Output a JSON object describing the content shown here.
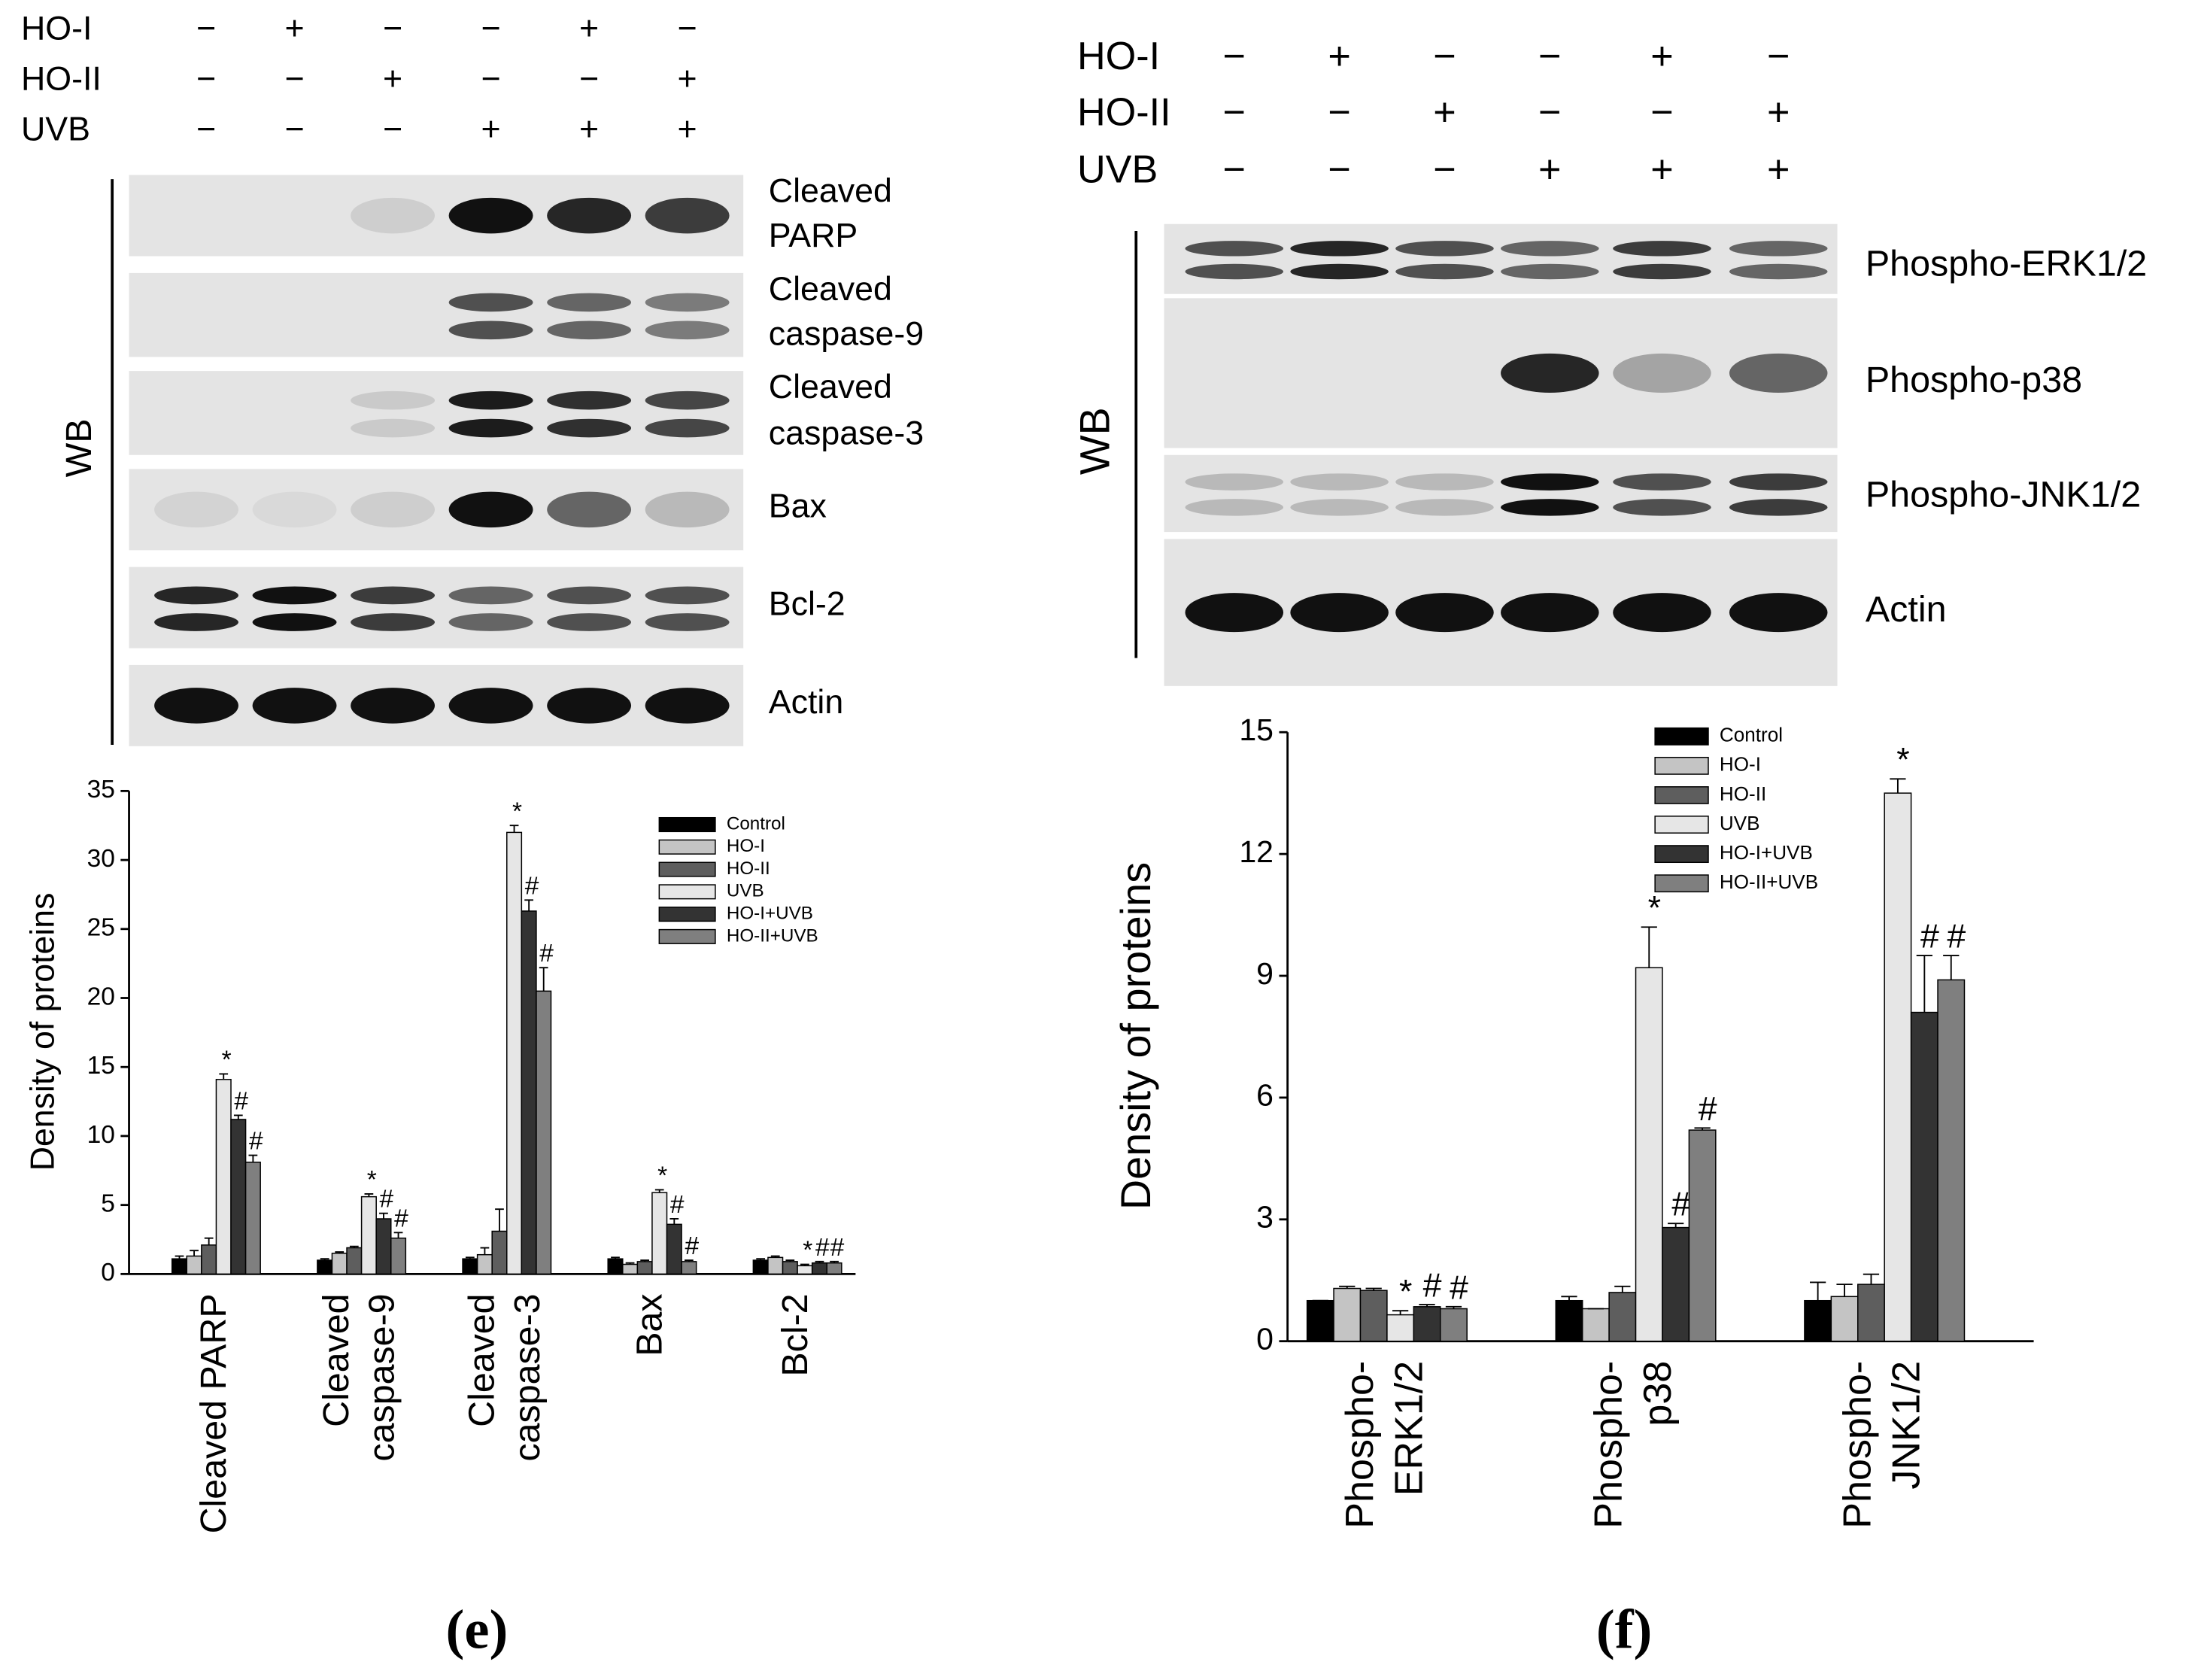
{
  "chart_data": [
    {
      "type": "bar",
      "panel_label": "(e)",
      "treatments": [
        {
          "name": "HO-I",
          "signs": [
            "−",
            "+",
            "−",
            "−",
            "+",
            "−"
          ]
        },
        {
          "name": "HO-II",
          "signs": [
            "−",
            "−",
            "+",
            "−",
            "−",
            "+"
          ]
        },
        {
          "name": "UVB",
          "signs": [
            "−",
            "−",
            "−",
            "+",
            "+",
            "+"
          ]
        }
      ],
      "wb_label": "WB",
      "blot_labels": [
        [
          "Cleaved",
          "PARP"
        ],
        [
          "Cleaved",
          "caspase-9"
        ],
        [
          "Cleaved",
          "caspase-3"
        ],
        [
          "Bax"
        ],
        [
          "Bcl-2"
        ],
        [
          "Actin"
        ]
      ],
      "ylabel": "Density of proteins",
      "categories": [
        [
          "Cleaved PARP"
        ],
        [
          "Cleaved",
          "caspase-9"
        ],
        [
          "Cleaved",
          "caspase-3"
        ],
        [
          "Bax"
        ],
        [
          "Bcl-2"
        ]
      ],
      "series": [
        {
          "name": "Control",
          "color": "#000000",
          "values": [
            1.1,
            1.0,
            1.1,
            1.1,
            1.0
          ],
          "errors": [
            0.2,
            0.1,
            0.1,
            0.1,
            0.1
          ]
        },
        {
          "name": "HO-I",
          "color": "#c4c4c4",
          "values": [
            1.3,
            1.5,
            1.4,
            0.7,
            1.2
          ],
          "errors": [
            0.4,
            0.1,
            0.5,
            0.1,
            0.1
          ]
        },
        {
          "name": "HO-II",
          "color": "#5e5e5e",
          "values": [
            2.1,
            1.9,
            3.1,
            0.9,
            0.9
          ],
          "errors": [
            0.5,
            0.1,
            1.6,
            0.1,
            0.1
          ]
        },
        {
          "name": "UVB",
          "color": "#e6e6e6",
          "values": [
            14.1,
            5.6,
            32.0,
            5.9,
            0.6
          ],
          "errors": [
            0.4,
            0.2,
            0.5,
            0.2,
            0.1
          ],
          "annotations": [
            "*",
            "*",
            "*",
            "*",
            "*"
          ]
        },
        {
          "name": "HO-I+UVB",
          "color": "#333333",
          "values": [
            11.2,
            4.0,
            26.3,
            3.6,
            0.8
          ],
          "errors": [
            0.3,
            0.4,
            0.8,
            0.4,
            0.1
          ],
          "annotations": [
            "#",
            "#",
            "#",
            "#",
            "#"
          ]
        },
        {
          "name": "HO-II+UVB",
          "color": "#7f7f7f",
          "values": [
            8.1,
            2.6,
            20.5,
            0.9,
            0.8
          ],
          "errors": [
            0.5,
            0.4,
            1.7,
            0.1,
            0.1
          ],
          "annotations": [
            "#",
            "#",
            "#",
            "#",
            "#"
          ]
        }
      ],
      "ylim": [
        0,
        35
      ],
      "yticks": [
        0,
        5,
        10,
        15,
        20,
        25,
        30,
        35
      ]
    },
    {
      "type": "bar",
      "panel_label": "(f)",
      "treatments": [
        {
          "name": "HO-I",
          "signs": [
            "−",
            "+",
            "−",
            "−",
            "+",
            "−"
          ]
        },
        {
          "name": "HO-II",
          "signs": [
            "−",
            "−",
            "+",
            "−",
            "−",
            "+"
          ]
        },
        {
          "name": "UVB",
          "signs": [
            "−",
            "−",
            "−",
            "+",
            "+",
            "+"
          ]
        }
      ],
      "wb_label": "WB",
      "blot_labels": [
        [
          "Phospho-ERK1/2"
        ],
        [
          "Phospho-p38"
        ],
        [
          "Phospho-JNK1/2"
        ],
        [
          "Actin"
        ]
      ],
      "ylabel": "Density of proteins",
      "categories": [
        [
          "Phospho-",
          "ERK1/2"
        ],
        [
          "Phospho-",
          "p38"
        ],
        [
          "Phospho-",
          "JNK1/2"
        ]
      ],
      "series": [
        {
          "name": "Control",
          "color": "#000000",
          "values": [
            1.0,
            1.0,
            1.0
          ],
          "errors": [
            0.0,
            0.1,
            0.45
          ]
        },
        {
          "name": "HO-I",
          "color": "#c4c4c4",
          "values": [
            1.3,
            0.8,
            1.1
          ],
          "errors": [
            0.05,
            0.0,
            0.3
          ]
        },
        {
          "name": "HO-II",
          "color": "#5e5e5e",
          "values": [
            1.25,
            1.2,
            1.4
          ],
          "errors": [
            0.05,
            0.15,
            0.25
          ]
        },
        {
          "name": "UVB",
          "color": "#e6e6e6",
          "values": [
            0.65,
            9.2,
            13.5
          ],
          "errors": [
            0.1,
            1.0,
            0.35
          ],
          "annotations": [
            "*",
            "*",
            "*"
          ]
        },
        {
          "name": "HO-I+UVB",
          "color": "#333333",
          "values": [
            0.85,
            2.8,
            8.1
          ],
          "errors": [
            0.05,
            0.1,
            1.4
          ],
          "annotations": [
            "#",
            "#",
            "#"
          ]
        },
        {
          "name": "HO-II+UVB",
          "color": "#7f7f7f",
          "values": [
            0.8,
            5.2,
            8.9
          ],
          "errors": [
            0.05,
            0.05,
            0.6
          ],
          "annotations": [
            "#",
            "#",
            "#"
          ]
        }
      ],
      "ylim": [
        0,
        15
      ],
      "yticks": [
        0,
        3,
        6,
        9,
        12,
        15
      ]
    }
  ]
}
